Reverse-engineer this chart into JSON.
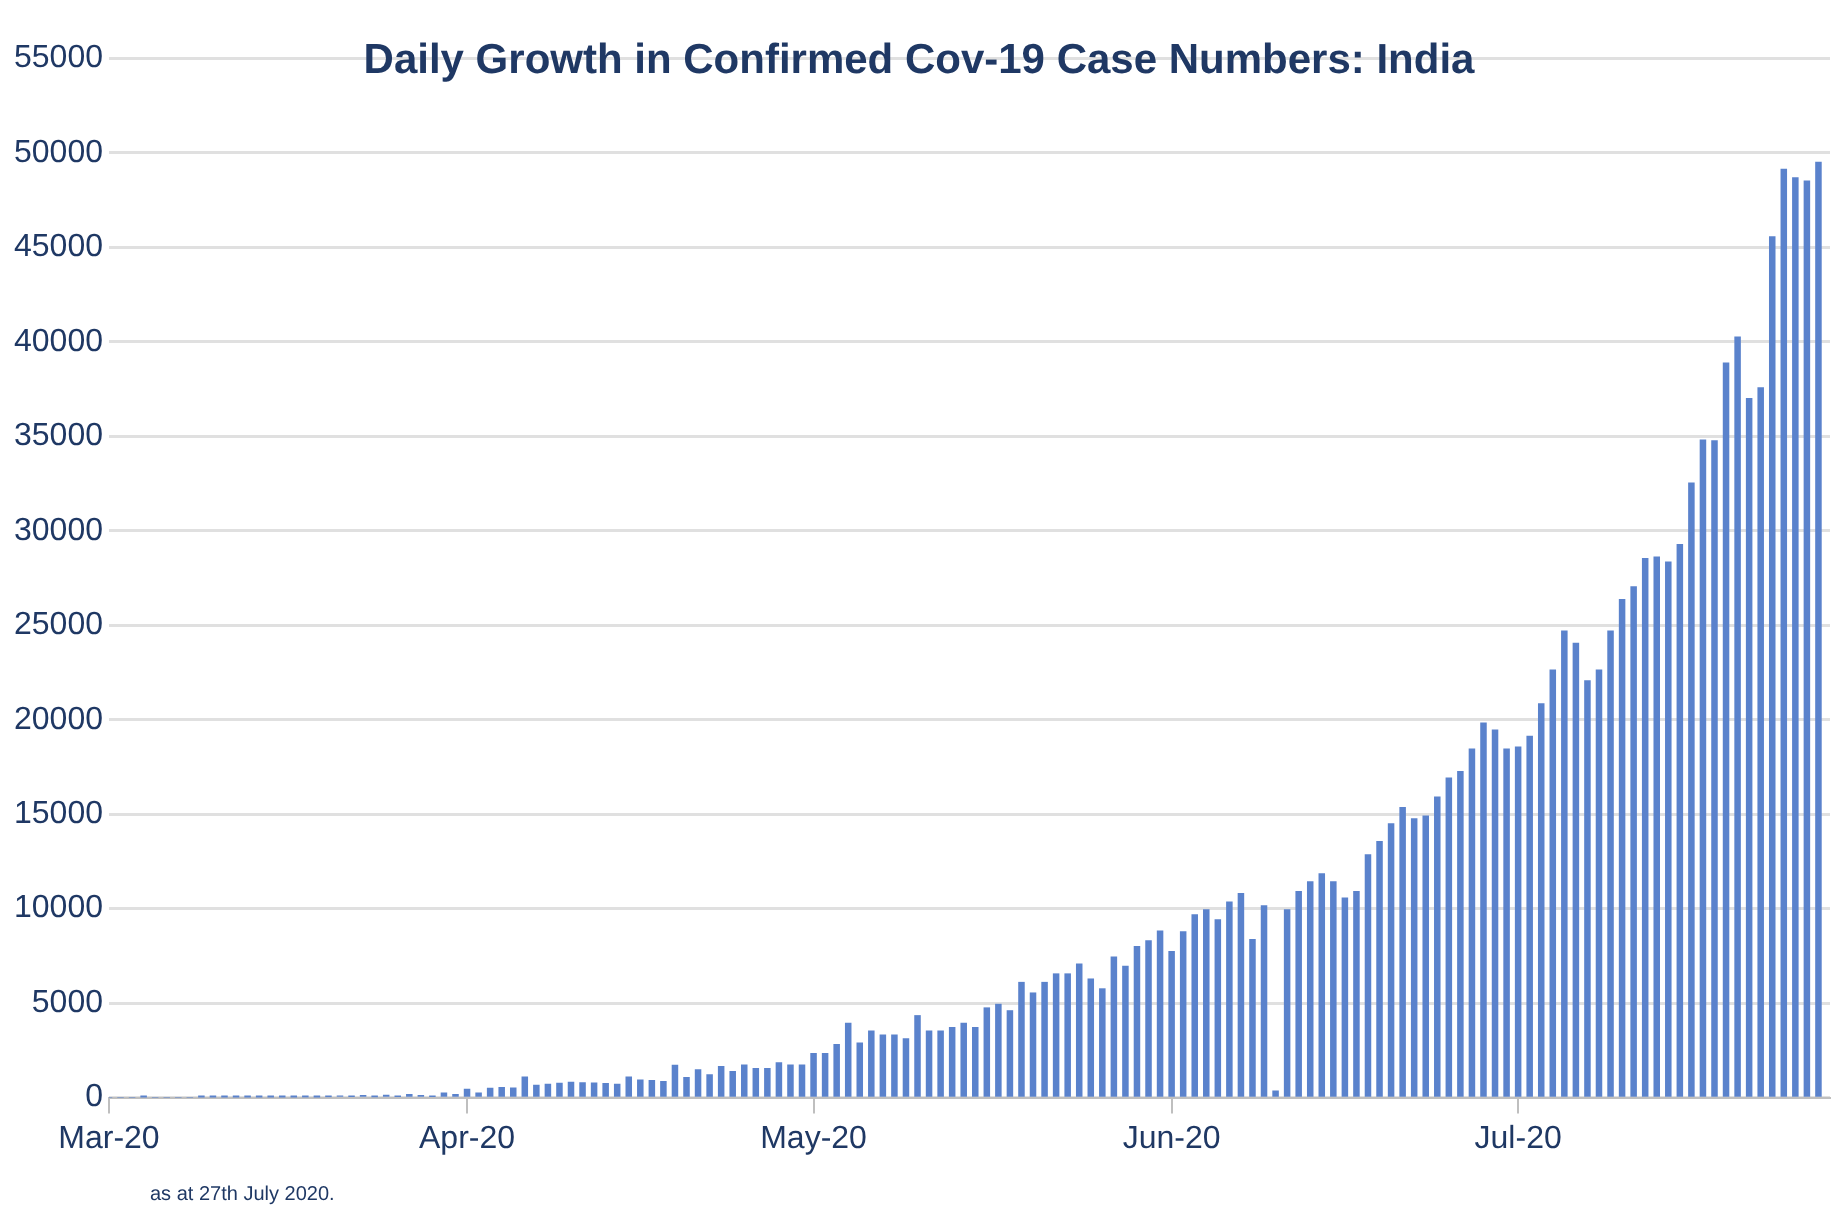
{
  "chart_data": {
    "type": "bar",
    "title": "Daily Growth in Confirmed Cov-19 Case Numbers: India",
    "x": [
      "2020-03-01",
      "2020-03-02",
      "2020-03-03",
      "2020-03-04",
      "2020-03-05",
      "2020-03-06",
      "2020-03-07",
      "2020-03-08",
      "2020-03-09",
      "2020-03-10",
      "2020-03-11",
      "2020-03-12",
      "2020-03-13",
      "2020-03-14",
      "2020-03-15",
      "2020-03-16",
      "2020-03-17",
      "2020-03-18",
      "2020-03-19",
      "2020-03-20",
      "2020-03-21",
      "2020-03-22",
      "2020-03-23",
      "2020-03-24",
      "2020-03-25",
      "2020-03-26",
      "2020-03-27",
      "2020-03-28",
      "2020-03-29",
      "2020-03-30",
      "2020-03-31",
      "2020-04-01",
      "2020-04-02",
      "2020-04-03",
      "2020-04-04",
      "2020-04-05",
      "2020-04-06",
      "2020-04-07",
      "2020-04-08",
      "2020-04-09",
      "2020-04-10",
      "2020-04-11",
      "2020-04-12",
      "2020-04-13",
      "2020-04-14",
      "2020-04-15",
      "2020-04-16",
      "2020-04-17",
      "2020-04-18",
      "2020-04-19",
      "2020-04-20",
      "2020-04-21",
      "2020-04-22",
      "2020-04-23",
      "2020-04-24",
      "2020-04-25",
      "2020-04-26",
      "2020-04-27",
      "2020-04-28",
      "2020-04-29",
      "2020-04-30",
      "2020-05-01",
      "2020-05-02",
      "2020-05-03",
      "2020-05-04",
      "2020-05-05",
      "2020-05-06",
      "2020-05-07",
      "2020-05-08",
      "2020-05-09",
      "2020-05-10",
      "2020-05-11",
      "2020-05-12",
      "2020-05-13",
      "2020-05-14",
      "2020-05-15",
      "2020-05-16",
      "2020-05-17",
      "2020-05-18",
      "2020-05-19",
      "2020-05-20",
      "2020-05-21",
      "2020-05-22",
      "2020-05-23",
      "2020-05-24",
      "2020-05-25",
      "2020-05-26",
      "2020-05-27",
      "2020-05-28",
      "2020-05-29",
      "2020-05-30",
      "2020-05-31",
      "2020-06-01",
      "2020-06-02",
      "2020-06-03",
      "2020-06-04",
      "2020-06-05",
      "2020-06-06",
      "2020-06-07",
      "2020-06-08",
      "2020-06-09",
      "2020-06-10",
      "2020-06-11",
      "2020-06-12",
      "2020-06-13",
      "2020-06-14",
      "2020-06-15",
      "2020-06-16",
      "2020-06-17",
      "2020-06-18",
      "2020-06-19",
      "2020-06-20",
      "2020-06-21",
      "2020-06-22",
      "2020-06-23",
      "2020-06-24",
      "2020-06-25",
      "2020-06-26",
      "2020-06-27",
      "2020-06-28",
      "2020-06-29",
      "2020-06-30",
      "2020-07-01",
      "2020-07-02",
      "2020-07-03",
      "2020-07-04",
      "2020-07-05",
      "2020-07-06",
      "2020-07-07",
      "2020-07-08",
      "2020-07-09",
      "2020-07-10",
      "2020-07-11",
      "2020-07-12",
      "2020-07-13",
      "2020-07-14",
      "2020-07-15",
      "2020-07-16",
      "2020-07-17",
      "2020-07-18",
      "2020-07-19",
      "2020-07-20",
      "2020-07-21",
      "2020-07-22",
      "2020-07-23",
      "2020-07-24",
      "2020-07-25",
      "2020-07-26",
      "2020-07-27"
    ],
    "series": [
      {
        "color": "#5a82cc",
        "values": [
          0,
          0,
          0,
          20,
          0,
          0,
          0,
          0,
          10,
          20,
          10,
          10,
          10,
          10,
          10,
          20,
          10,
          30,
          20,
          60,
          80,
          70,
          100,
          40,
          120,
          70,
          160,
          100,
          70,
          230,
          150,
          440,
          240,
          480,
          520,
          500,
          1080,
          650,
          700,
          750,
          800,
          780,
          760,
          740,
          700,
          1080,
          920,
          900,
          850,
          1700,
          1050,
          1460,
          1200,
          1640,
          1370,
          1720,
          1530,
          1530,
          1830,
          1720,
          1720,
          2320,
          2320,
          2800,
          3920,
          2880,
          3510,
          3300,
          3300,
          3100,
          4330,
          3510,
          3510,
          3700,
          3920,
          3700,
          4740,
          4930,
          4590,
          6090,
          5530,
          6090,
          6540,
          6540,
          7060,
          6270,
          5750,
          7430,
          6940,
          7990,
          8290,
          8810,
          7730,
          8770,
          9670,
          9930,
          9410,
          10340,
          10790,
          8360,
          10150,
          340,
          9930,
          10900,
          11420,
          11840,
          11420,
          10560,
          10900,
          12840,
          13550,
          14480,
          15340,
          14750,
          14900,
          15900,
          16910,
          17250,
          18440,
          19820,
          19450,
          18440,
          18550,
          19110,
          20830,
          22620,
          24680,
          24040,
          22060,
          22620,
          24680,
          26360,
          27030,
          28520,
          28600,
          28340,
          29270,
          32520,
          34790,
          34750,
          38870,
          40250,
          36990,
          37560,
          45550,
          49130,
          48680,
          48500,
          49500
        ]
      }
    ],
    "xlim": [
      "2020-03-01",
      "2020-07-28"
    ],
    "xticks": [
      {
        "value": "2020-03-01",
        "label": "Mar-20"
      },
      {
        "value": "2020-04-01",
        "label": "Apr-20"
      },
      {
        "value": "2020-05-01",
        "label": "May-20"
      },
      {
        "value": "2020-06-01",
        "label": "Jun-20"
      },
      {
        "value": "2020-07-01",
        "label": "Jul-20"
      }
    ],
    "ylim": [
      0,
      55000
    ],
    "yticks": [
      0,
      5000,
      10000,
      15000,
      20000,
      25000,
      30000,
      35000,
      40000,
      45000,
      50000,
      55000
    ],
    "grid": "y",
    "legend": false,
    "annotations": [
      "as at 27th July 2020."
    ]
  }
}
